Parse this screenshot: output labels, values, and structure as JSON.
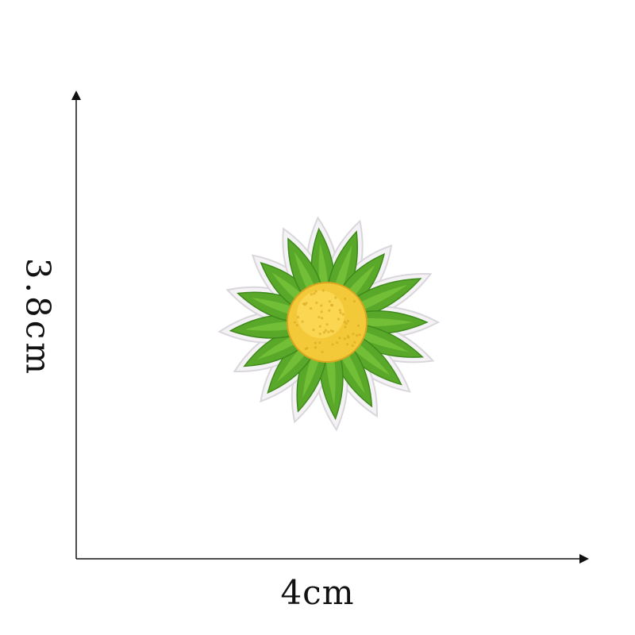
{
  "dimensions": {
    "width_label": "4cm",
    "height_label": "3.8cm"
  },
  "patch": {
    "subject": "daisy-flower-patch",
    "petal_color": "#5aa82a",
    "petal_highlight": "#7cc73c",
    "petal_shadow": "#3f8a1c",
    "center_color": "#f3c93a",
    "center_highlight": "#ffe066",
    "border_color": "#f4f2f4",
    "border_shadow": "#d9d6dc"
  },
  "axes": {
    "line_color": "#111111"
  }
}
